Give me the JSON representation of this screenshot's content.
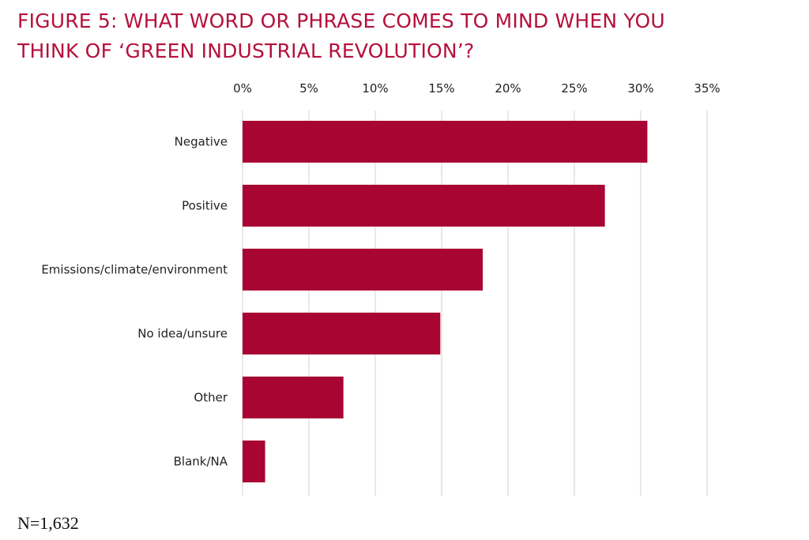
{
  "figure": {
    "title_line1": "FIGURE 5: WHAT WORD OR PHRASE COMES TO MIND WHEN YOU",
    "title_line2": "THINK OF ‘GREEN INDUSTRIAL REVOLUTION’?",
    "note": "N=1,632"
  },
  "chart_data": {
    "type": "bar",
    "orientation": "horizontal",
    "title": "FIGURE 5: WHAT WORD OR PHRASE COMES TO MIND WHEN YOU THINK OF ‘GREEN INDUSTRIAL REVOLUTION’?",
    "categories": [
      "Negative",
      "Positive",
      "Emissions/climate/environment",
      "No idea/unsure",
      "Other",
      "Blank/NA"
    ],
    "values": [
      30.5,
      27.3,
      18.1,
      14.9,
      7.6,
      1.7
    ],
    "xlim": [
      0,
      35
    ],
    "ticks": [
      0,
      5,
      10,
      15,
      20,
      25,
      30,
      35
    ],
    "tick_labels": [
      "0%",
      "5%",
      "10%",
      "15%",
      "20%",
      "25%",
      "30%",
      "35%"
    ],
    "axis_position": "top",
    "grid": true,
    "legend": "none",
    "bar_color": "#a80533",
    "grid_color": "#d0d0d0"
  }
}
